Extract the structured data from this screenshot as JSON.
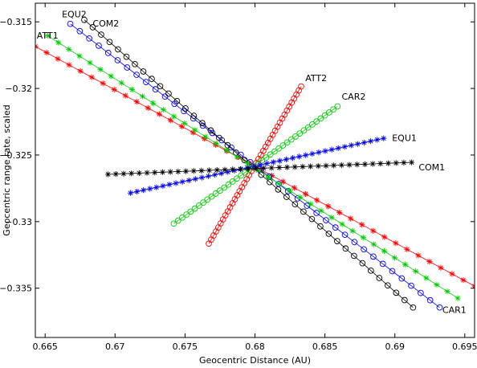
{
  "chart_data": {
    "type": "line",
    "title": "",
    "xlabel": "Geocentric Distance (AU)",
    "ylabel": "Geocentric range rate, scaled",
    "xlim": [
      0.6643,
      0.6957
    ],
    "ylim": [
      -0.3387,
      -0.3136
    ],
    "xticks": [
      0.665,
      0.67,
      0.675,
      0.68,
      0.685,
      0.69,
      0.695
    ],
    "xtick_labels": [
      "0.665",
      "0.67",
      "0.675",
      "0.68",
      "0.685",
      "0.69",
      "0.695"
    ],
    "yticks": [
      -0.315,
      -0.32,
      -0.325,
      -0.33,
      -0.335
    ],
    "ytick_labels": [
      "−0.315",
      "−0.32",
      "−0.325",
      "−0.33",
      "−0.335"
    ],
    "grid": false,
    "legend": "none",
    "series": [
      {
        "name": "ATT1",
        "color": "#ff0000",
        "marker": "asterisk",
        "n": 40,
        "start": [
          0.6643,
          -0.31685
        ],
        "end": [
          0.6957,
          -0.33485
        ]
      },
      {
        "name": "EQU2",
        "color": "#0000ff",
        "marker": "circle",
        "n": 40,
        "start": [
          0.6668,
          -0.31515
        ],
        "end": [
          0.6932,
          -0.33645
        ]
      },
      {
        "name": "COM2",
        "color": "#000000",
        "marker": "circle",
        "n": 40,
        "start": [
          0.6678,
          -0.31485
        ],
        "end": [
          0.6913,
          -0.33645
        ]
      },
      {
        "name": "",
        "color": "#00cc00",
        "marker": "asterisk",
        "n": 40,
        "start": [
          0.6652,
          -0.31605
        ],
        "end": [
          0.6945,
          -0.33575
        ]
      },
      {
        "name": "ATT2",
        "color": "#ff0000",
        "marker": "circle",
        "n": 40,
        "start": [
          0.6767,
          -0.33165
        ],
        "end": [
          0.6833,
          -0.31985
        ]
      },
      {
        "name": "CAR2",
        "color": "#00cc00",
        "marker": "circle",
        "n": 40,
        "start": [
          0.6742,
          -0.33015
        ],
        "end": [
          0.6859,
          -0.32135
        ]
      },
      {
        "name": "EQU1",
        "color": "#0000ff",
        "marker": "asterisk",
        "n": 40,
        "start": [
          0.6711,
          -0.32785
        ],
        "end": [
          0.6892,
          -0.32375
        ]
      },
      {
        "name": "COM1",
        "color": "#000000",
        "marker": "asterisk",
        "n": 40,
        "start": [
          0.6695,
          -0.32645
        ],
        "end": [
          0.6912,
          -0.32555
        ]
      }
    ],
    "annotations": [
      {
        "text": "ATT1",
        "x": 0.6644,
        "y": -0.31625
      },
      {
        "text": "EQU2",
        "x": 0.6662,
        "y": -0.31465
      },
      {
        "text": "COM2",
        "x": 0.6684,
        "y": -0.31535
      },
      {
        "text": "ATT2",
        "x": 0.6836,
        "y": -0.31945
      },
      {
        "text": "CAR2",
        "x": 0.6862,
        "y": -0.32085
      },
      {
        "text": "EQU1",
        "x": 0.6898,
        "y": -0.32395
      },
      {
        "text": "COM1",
        "x": 0.6917,
        "y": -0.32615
      },
      {
        "text": "CAR1",
        "x": 0.6934,
        "y": -0.33685
      }
    ]
  }
}
